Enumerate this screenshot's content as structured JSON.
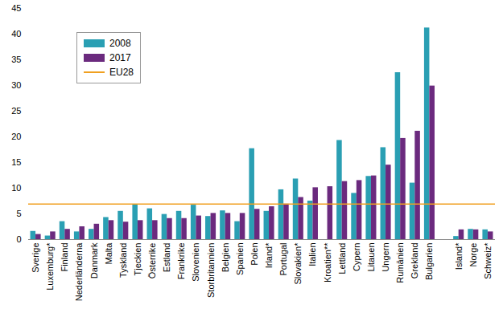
{
  "chart_data": {
    "type": "bar",
    "categories": [
      "Sverige",
      "Luxemburg*",
      "Finland",
      "Nederländerna",
      "Danmark",
      "Malta",
      "Tyskland",
      "Tjeckien",
      "Österrike",
      "Estland",
      "Frankrike",
      "Slovenien",
      "Storbritannien",
      "Belgien",
      "Spanien",
      "Polen",
      "Irland*",
      "Portugal",
      "Slovakien*",
      "Italien",
      "Kroatien**",
      "Lettland",
      "Cypern",
      "Litauen",
      "Ungern",
      "Rumänien",
      "Grekland",
      "Bulgarien",
      null,
      "Island*",
      "Norge",
      "Schweiz*"
    ],
    "series": [
      {
        "name": "2008",
        "color": "#2a9fb3",
        "values": [
          1.6,
          0.7,
          3.5,
          1.5,
          2.0,
          4.3,
          5.5,
          6.8,
          6.0,
          4.9,
          5.5,
          6.7,
          4.5,
          5.6,
          3.5,
          17.7,
          5.5,
          9.7,
          11.8,
          7.5,
          null,
          19.3,
          9.0,
          12.3,
          17.9,
          32.5,
          11.0,
          41.2,
          null,
          0.6,
          2.0,
          1.9
        ]
      },
      {
        "name": "2017",
        "color": "#6b2a7e",
        "values": [
          1.0,
          1.5,
          2.0,
          2.5,
          3.0,
          3.7,
          3.4,
          3.7,
          3.7,
          4.1,
          4.1,
          4.6,
          5.1,
          5.1,
          5.1,
          5.9,
          6.4,
          6.9,
          8.2,
          10.1,
          10.3,
          11.3,
          11.5,
          12.4,
          14.5,
          19.7,
          21.1,
          29.9,
          null,
          1.9,
          1.9,
          1.5
        ]
      }
    ],
    "reference_lines": [
      {
        "name": "EU28",
        "value": 6.9,
        "color": "#f0a020"
      }
    ],
    "ylim": [
      0,
      45
    ],
    "yticks": [
      0,
      5,
      10,
      15,
      20,
      25,
      30,
      35,
      40,
      45
    ],
    "grid": false,
    "legend": "top-left"
  }
}
